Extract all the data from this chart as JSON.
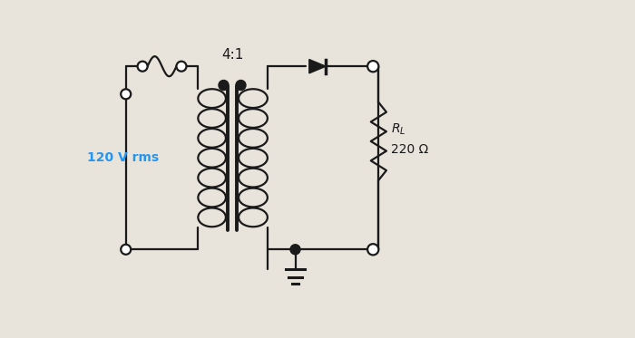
{
  "bg_color": "#e8e4dc",
  "line_color": "#1a1a1a",
  "text_color": "#1a1a1a",
  "source_label": "120 V rms",
  "source_label_color": "#2196F3",
  "ratio_label": "4:1",
  "rl_label": "$R_L$",
  "ohm_label": "220 Ω",
  "fig_width": 7.0,
  "fig_height": 3.73,
  "dpi": 100,
  "xlim": [
    0,
    10
  ],
  "ylim": [
    0,
    6
  ]
}
